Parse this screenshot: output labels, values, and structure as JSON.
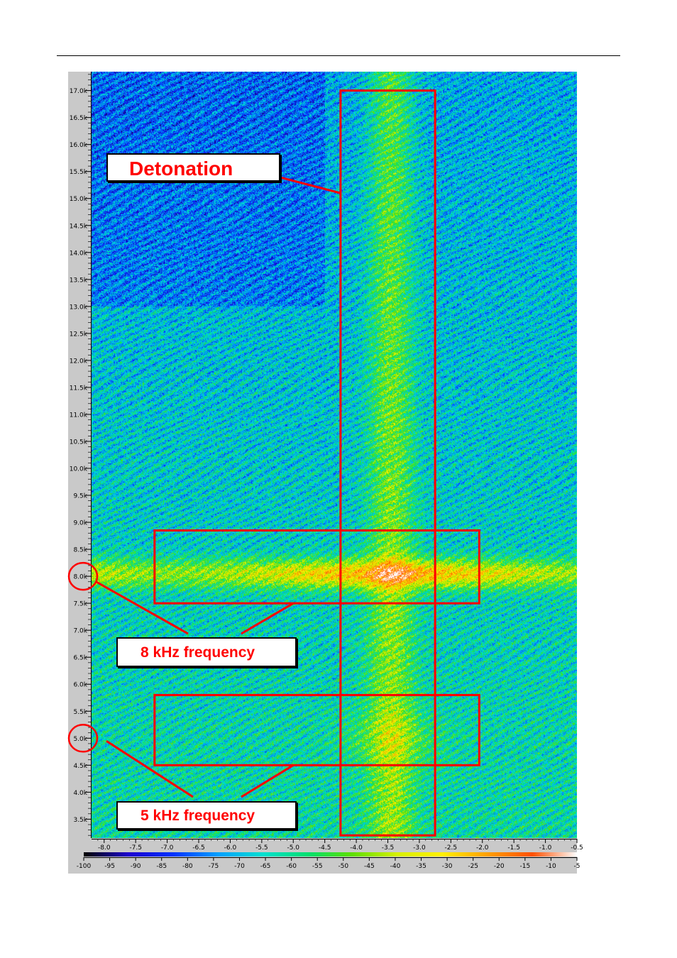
{
  "chart_data": {
    "type": "heatmap",
    "title": "",
    "xlabel": "",
    "ylabel": "",
    "x_ticks": [
      "-8.0",
      "-7.5",
      "-7.0",
      "-6.5",
      "-6.0",
      "-5.5",
      "-5.0",
      "-4.5",
      "-4.0",
      "-3.5",
      "-3.0",
      "-2.5",
      "-2.0",
      "-1.5",
      "-1.0",
      "-0.5"
    ],
    "y_ticks": [
      "17.0k",
      "16.5k",
      "16.0k",
      "15.5k",
      "15.0k",
      "14.5k",
      "14.0k",
      "13.5k",
      "13.0k",
      "12.5k",
      "12.0k",
      "11.5k",
      "11.0k",
      "10.5k",
      "10.0k",
      "9.5k",
      "9.0k",
      "8.5k",
      "8.0k",
      "7.5k",
      "7.0k",
      "6.5k",
      "6.0k",
      "5.5k",
      "5.0k",
      "4.5k",
      "4.0k",
      "3.5k"
    ],
    "x_range": [
      -8.2,
      -0.5
    ],
    "y_range_hz": [
      3150,
      17350
    ],
    "colorbar_ticks": [
      "-100",
      "-95",
      "-90",
      "-85",
      "-80",
      "-75",
      "-70",
      "-65",
      "-60",
      "-55",
      "-50",
      "-45",
      "-40",
      "-35",
      "-30",
      "-25",
      "-20",
      "-15",
      "-10",
      "-5"
    ],
    "colorbar_range": [
      -100,
      -5
    ],
    "colormap": [
      "#000000",
      "#1d00cf",
      "#0033ff",
      "#00a0ff",
      "#00e0d0",
      "#00e070",
      "#60e000",
      "#d8f000",
      "#fff000",
      "#ffa000",
      "#ff5000",
      "#ffffff"
    ],
    "features": [
      {
        "name": "8 kHz band",
        "y_hz": 8050
      },
      {
        "name": "detonation column",
        "x": -3.45
      },
      {
        "name": "5 kHz band",
        "y_hz": 5000
      }
    ],
    "highlight_boxes": [
      {
        "label": "Detonation",
        "x": [
          -4.25,
          -2.75
        ],
        "y_hz": [
          3200,
          17000
        ]
      },
      {
        "label": "8 kHz frequency",
        "x": [
          -7.2,
          -2.05
        ],
        "y_hz": [
          7500,
          8850
        ]
      },
      {
        "label": "5 kHz frequency",
        "x": [
          -7.2,
          -2.05
        ],
        "y_hz": [
          4500,
          5800
        ]
      }
    ]
  },
  "annotations": {
    "detonation": "Detonation",
    "freq_8k": "8 kHz frequency",
    "freq_5k": "5 kHz frequency"
  },
  "colors": {
    "annotation_red": "#ff0000",
    "axis_panel": "#c9c9c9",
    "background": "#ffffff"
  }
}
